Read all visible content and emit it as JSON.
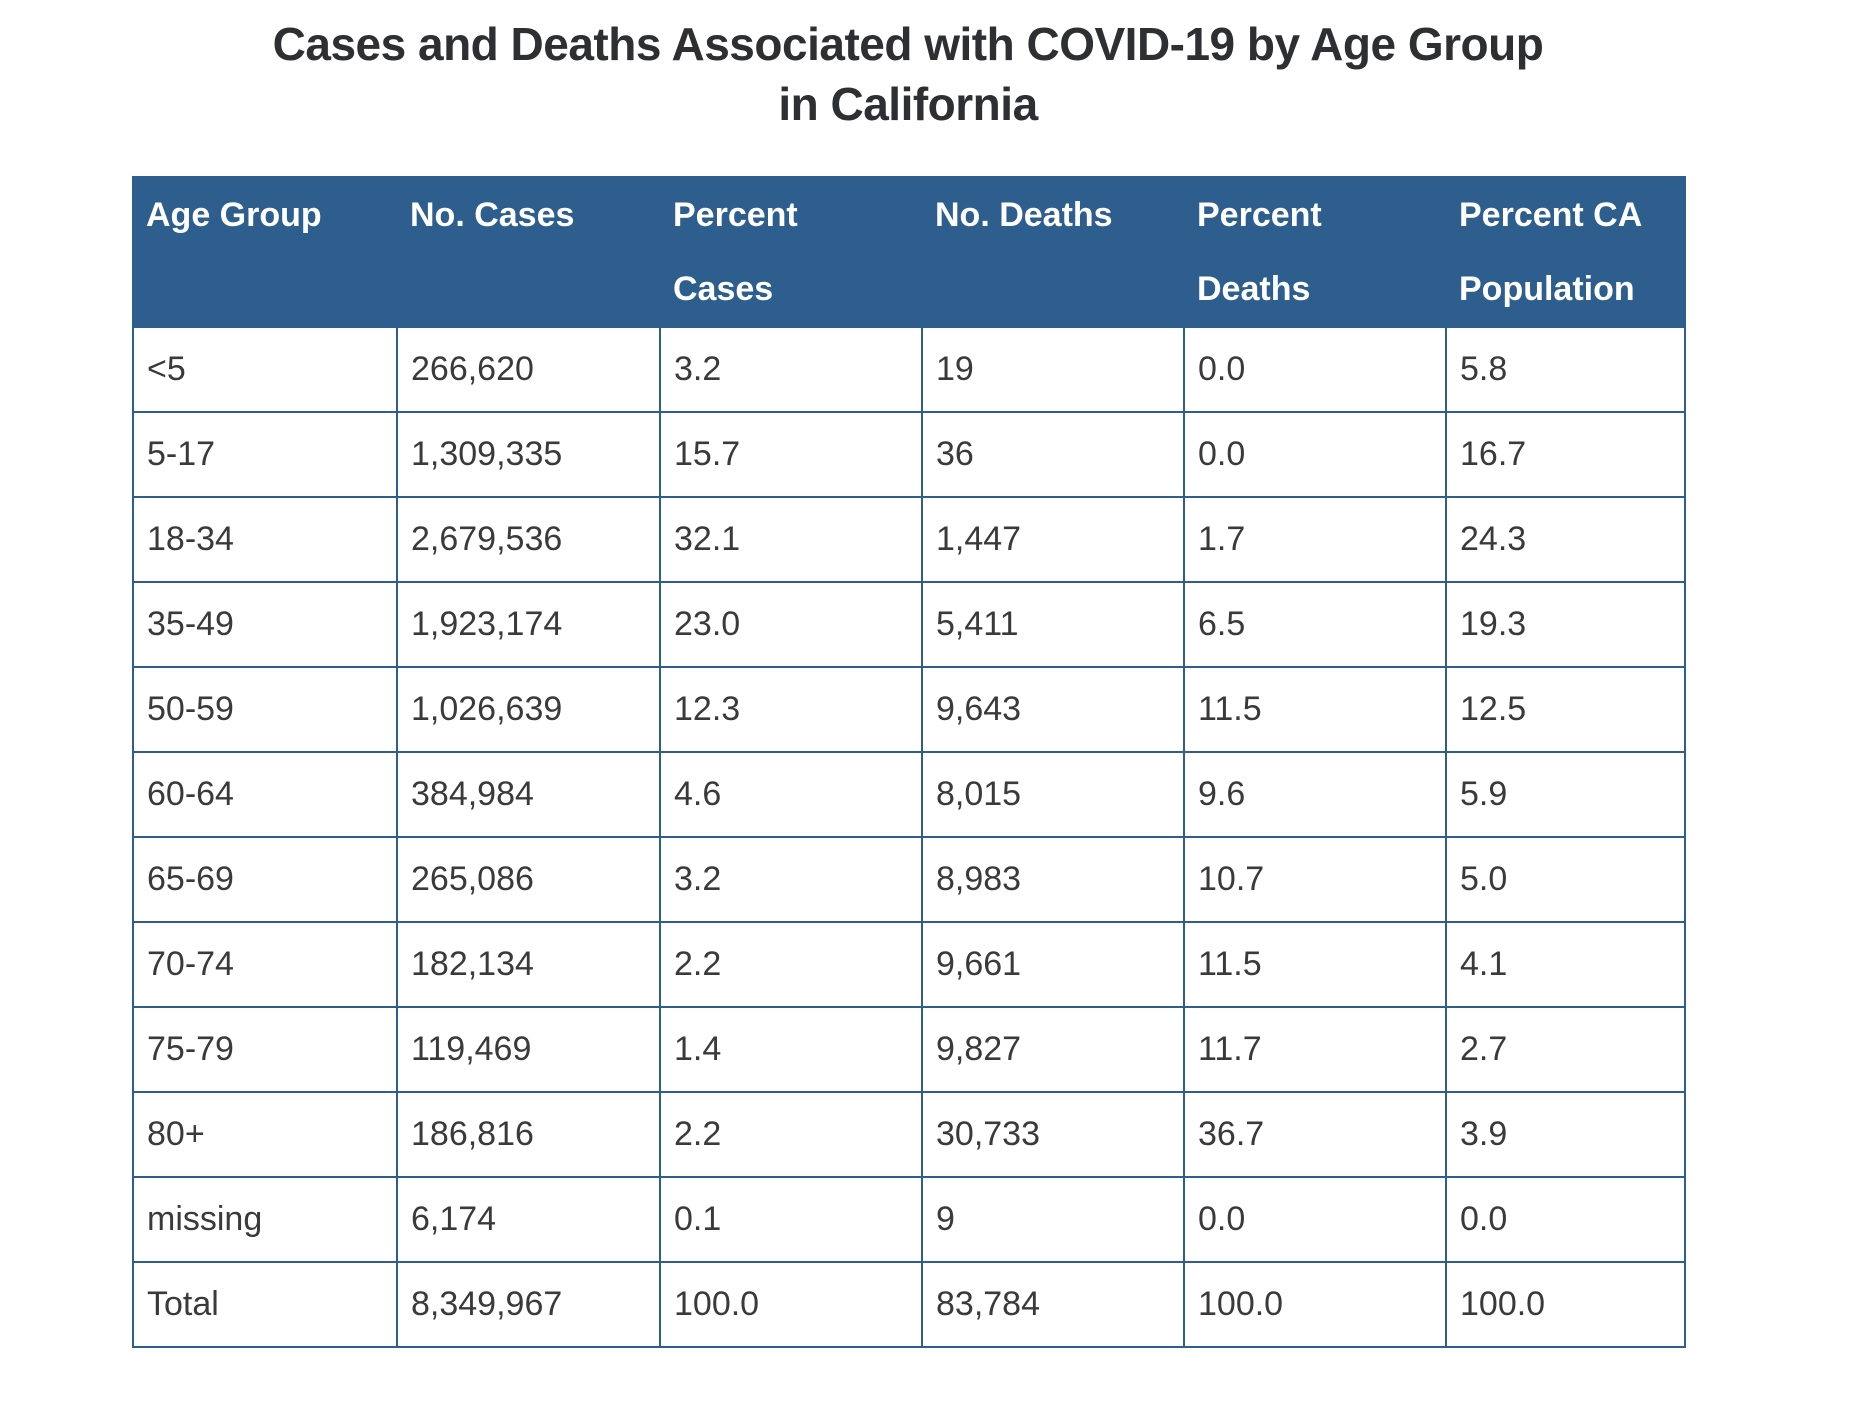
{
  "title": {
    "line1": "Cases and Deaths Associated with COVID-19 by Age Group",
    "line2": "in California"
  },
  "colors": {
    "header_bg": "#2d5e8e",
    "border": "#2d5e8e",
    "header_text": "#ffffff",
    "cell_text": "#3a3a3a",
    "title_text": "#2e2f33"
  },
  "chart_data": {
    "type": "table",
    "title": "Cases and Deaths Associated with COVID-19 by Age Group in California",
    "columns": [
      "Age Group",
      "No. Cases",
      "Percent\nCases",
      "No. Deaths",
      "Percent\nDeaths",
      "Percent CA\nPopulation"
    ],
    "rows": [
      [
        "<5",
        "266,620",
        "3.2",
        "19",
        "0.0",
        "5.8"
      ],
      [
        "5-17",
        "1,309,335",
        "15.7",
        "36",
        "0.0",
        "16.7"
      ],
      [
        "18-34",
        "2,679,536",
        "32.1",
        "1,447",
        "1.7",
        "24.3"
      ],
      [
        "35-49",
        "1,923,174",
        "23.0",
        "5,411",
        "6.5",
        "19.3"
      ],
      [
        "50-59",
        "1,026,639",
        "12.3",
        "9,643",
        "11.5",
        "12.5"
      ],
      [
        "60-64",
        "384,984",
        "4.6",
        "8,015",
        "9.6",
        "5.9"
      ],
      [
        "65-69",
        "265,086",
        "3.2",
        "8,983",
        "10.7",
        "5.0"
      ],
      [
        "70-74",
        "182,134",
        "2.2",
        "9,661",
        "11.5",
        "4.1"
      ],
      [
        "75-79",
        "119,469",
        "1.4",
        "9,827",
        "11.7",
        "2.7"
      ],
      [
        "80+",
        "186,816",
        "2.2",
        "30,733",
        "36.7",
        "3.9"
      ],
      [
        "missing",
        "6,174",
        "0.1",
        "9",
        "0.0",
        "0.0"
      ],
      [
        "Total",
        "8,349,967",
        "100.0",
        "83,784",
        "100.0",
        "100.0"
      ]
    ]
  }
}
